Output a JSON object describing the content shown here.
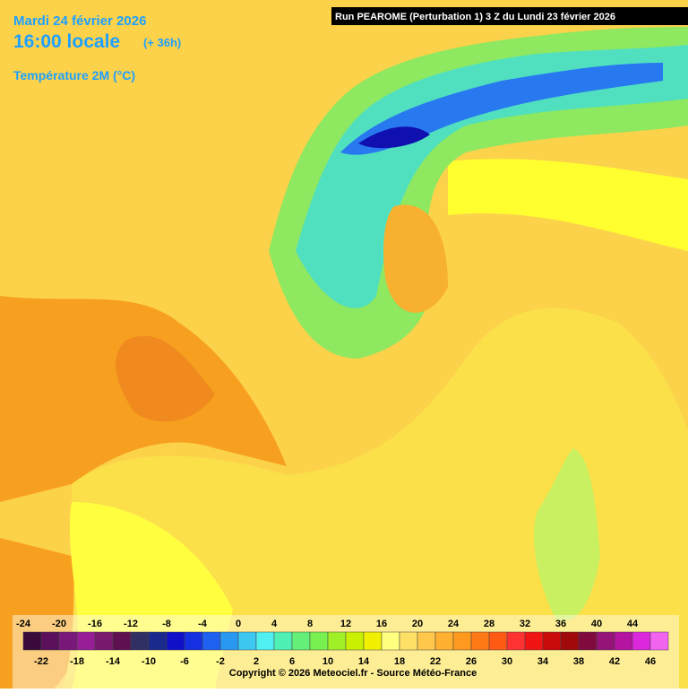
{
  "header": {
    "date": "Mardi 24 février 2026",
    "time": "16:00 locale",
    "offset": "(+ 36h)",
    "parameter": "Température 2M (°C)",
    "run": "Run PEAROME (Perturbation 1) 3 Z du Lundi 23 février 2026"
  },
  "legend": {
    "ticks": [
      -24,
      -22,
      -20,
      -18,
      -16,
      -14,
      -12,
      -10,
      -8,
      -6,
      -4,
      -2,
      0,
      2,
      4,
      6,
      8,
      10,
      12,
      14,
      16,
      18,
      20,
      22,
      24,
      26,
      28,
      30,
      32,
      34,
      36,
      38,
      40,
      42,
      44,
      46
    ],
    "colors": [
      "#3a0a3a",
      "#5a105a",
      "#7a187a",
      "#981e98",
      "#7a1a6e",
      "#5e1050",
      "#303064",
      "#1a2a8c",
      "#1010c8",
      "#1430e0",
      "#1e60f0",
      "#2898f0",
      "#3cc8f0",
      "#50f0f0",
      "#50f0b4",
      "#64f078",
      "#78f050",
      "#a0f028",
      "#c8f000",
      "#f0f000",
      "#ffff80",
      "#ffe066",
      "#ffc84a",
      "#ffb030",
      "#ff9a1e",
      "#ff7a14",
      "#ff5a14",
      "#ff3232",
      "#f01414",
      "#c80a0a",
      "#a00a0a",
      "#800a3c",
      "#961478",
      "#b414a0",
      "#dc28dc",
      "#f064f0"
    ]
  },
  "footer": {
    "copyright": "Copyright © 2026 Meteociel.fr - Source Météo-France"
  }
}
